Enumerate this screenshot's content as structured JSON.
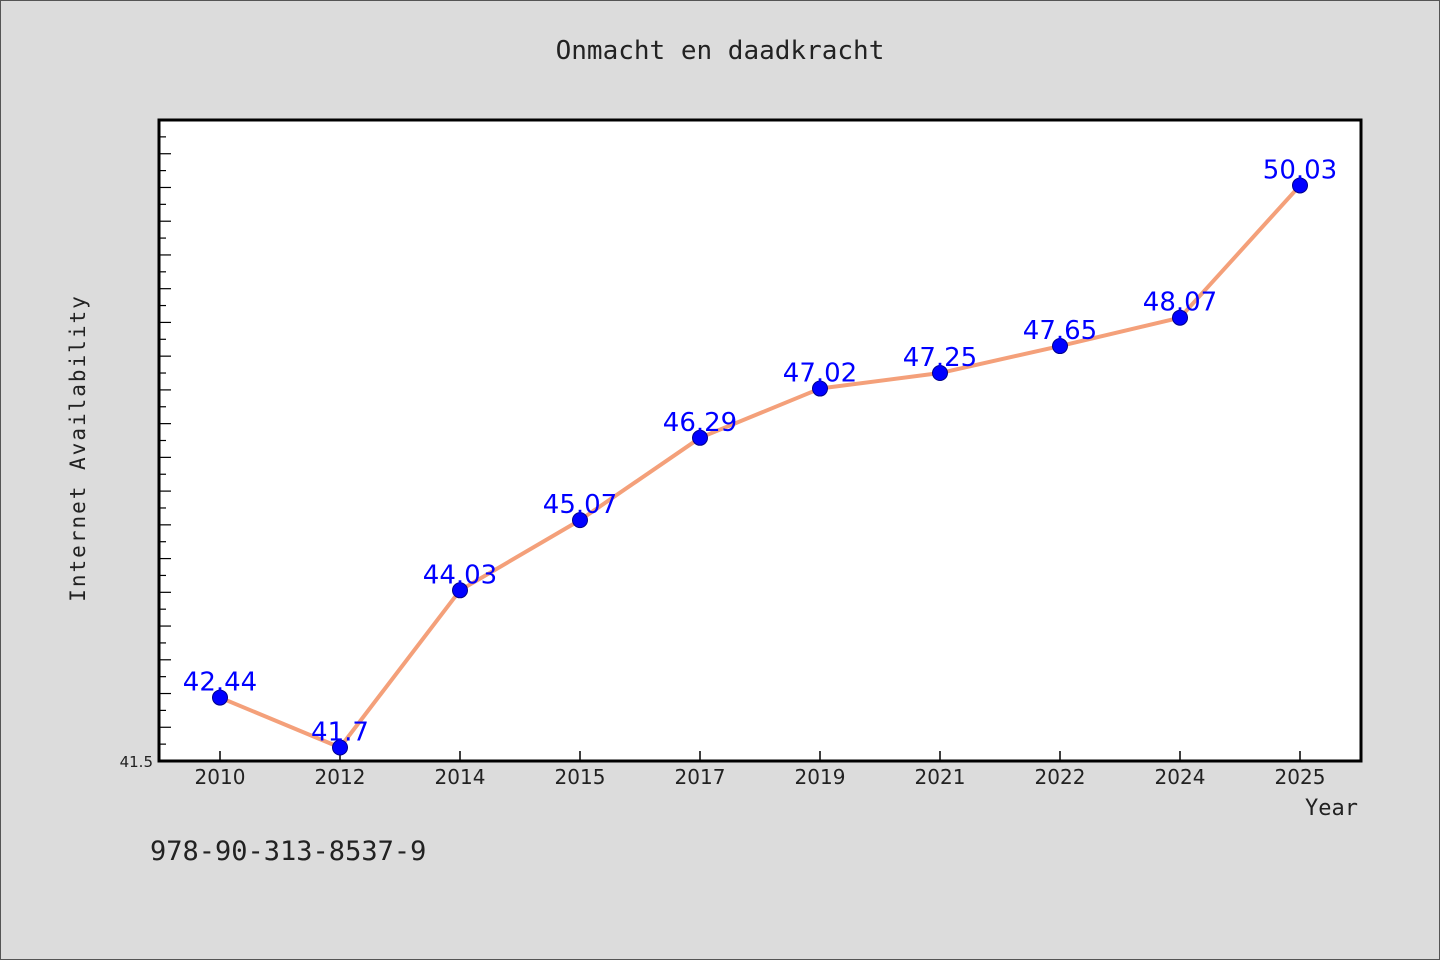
{
  "chart_data": {
    "type": "line",
    "title": "Onmacht en daadkracht",
    "xlabel": "Year",
    "ylabel": "Internet Availability",
    "categories": [
      "2010",
      "2012",
      "2014",
      "2015",
      "2017",
      "2019",
      "2021",
      "2022",
      "2024",
      "2025"
    ],
    "series": [
      {
        "values": [
          42.44,
          41.7,
          44.03,
          45.07,
          46.29,
          47.02,
          47.25,
          47.65,
          48.07,
          50.03
        ],
        "data_labels": [
          "42.44",
          "41.7",
          "44.03",
          "45.07",
          "46.29",
          "47.02",
          "47.25",
          "47.65",
          "48.07",
          "50.03"
        ]
      }
    ],
    "y_tick_labels": [
      "41.5"
    ],
    "ylim": [
      41.5,
      51.0
    ],
    "grid": false,
    "colors": {
      "line": "#f4a07a",
      "marker": "#0000ff",
      "data_label": "#0000ff"
    }
  },
  "footer": {
    "code": "978-90-313-8537-9"
  }
}
